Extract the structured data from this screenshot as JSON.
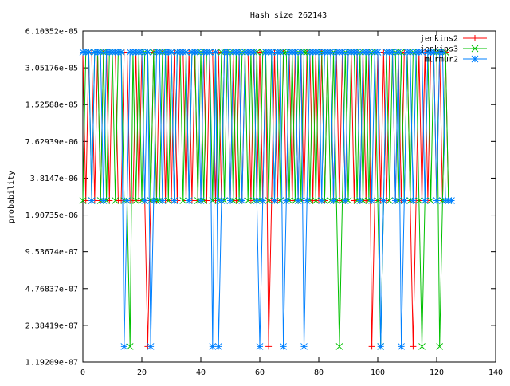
{
  "chart_data": {
    "type": "line",
    "title": "Hash size 262143",
    "xlabel": "",
    "ylabel": "probability",
    "xlim": [
      0,
      140
    ],
    "ylim": [
      1.19209e-07,
      6.10352e-05
    ],
    "yscale": "log",
    "grid": false,
    "legend_position": "top-right",
    "x_ticks": [
      "0",
      "20",
      "40",
      "60",
      "80",
      "100",
      "120",
      "140"
    ],
    "x_tick_values": [
      0,
      20,
      40,
      60,
      80,
      100,
      120,
      140
    ],
    "y_ticks": [
      "6.10352e-05",
      "3.05176e-05",
      "1.52588e-05",
      "7.62939e-06",
      "3.8147e-06",
      "1.90735e-06",
      "9.53674e-07",
      "4.76837e-07",
      "2.38419e-07",
      "1.19209e-07"
    ],
    "y_tick_values": [
      6.10352e-05,
      3.05176e-05,
      1.52588e-05,
      7.62939e-06,
      3.8147e-06,
      1.90735e-06,
      9.53674e-07,
      4.76837e-07,
      2.38419e-07,
      1.19209e-07
    ],
    "series": [
      {
        "name": "jenkins2",
        "color": "#ff0000",
        "marker": "plus",
        "high_value": 4.1e-05,
        "mid_value": 2.5e-06,
        "low_value": 1.6e-07,
        "x": [
          0,
          1,
          2,
          3,
          4,
          5,
          6,
          7,
          8,
          9,
          10,
          11,
          12,
          13,
          14,
          15,
          16,
          17,
          18,
          19,
          20,
          21,
          22,
          23,
          24,
          25,
          26,
          27,
          28,
          29,
          30,
          31,
          32,
          33,
          34,
          35,
          36,
          37,
          38,
          39,
          40,
          41,
          42,
          43,
          44,
          45,
          46,
          47,
          48,
          49,
          50,
          51,
          52,
          53,
          54,
          55,
          56,
          57,
          58,
          59,
          60,
          61,
          62,
          63,
          64,
          65,
          66,
          67,
          68,
          69,
          70,
          71,
          72,
          73,
          74,
          75,
          76,
          77,
          78,
          79,
          80,
          81,
          82,
          83,
          84,
          85,
          86,
          87,
          88,
          89,
          90,
          91,
          92,
          93,
          94,
          95,
          96,
          97,
          98,
          99,
          100,
          101,
          102,
          103,
          104,
          105,
          106,
          107,
          108,
          109,
          110,
          111,
          112,
          113,
          114,
          115,
          116,
          117,
          118,
          119,
          120,
          121,
          122,
          123,
          124
        ],
        "y": [
          4.1e-05,
          2.5e-06,
          4.1e-05,
          4.1e-05,
          2.5e-06,
          4.1e-05,
          2.5e-06,
          4.1e-05,
          4.1e-05,
          2.5e-06,
          4.1e-05,
          4.1e-05,
          2.5e-06,
          2.5e-06,
          4.1e-05,
          4.1e-05,
          2.5e-06,
          2.5e-06,
          4.1e-05,
          2.5e-06,
          4.1e-05,
          2.5e-06,
          1.6e-07,
          2.5e-06,
          4.1e-05,
          2.5e-06,
          4.1e-05,
          4.1e-05,
          2.5e-06,
          4.1e-05,
          2.5e-06,
          4.1e-05,
          2.5e-06,
          4.1e-05,
          4.1e-05,
          2.5e-06,
          4.1e-05,
          2.5e-06,
          4.1e-05,
          2.5e-06,
          2.5e-06,
          4.1e-05,
          2.5e-06,
          4.1e-05,
          4.1e-05,
          2.5e-06,
          4.1e-05,
          2.5e-06,
          4.1e-05,
          4.1e-05,
          2.5e-06,
          4.1e-05,
          2.5e-06,
          4.1e-05,
          2.5e-06,
          4.1e-05,
          4.1e-05,
          2.5e-06,
          4.1e-05,
          2.5e-06,
          4.1e-05,
          2.5e-06,
          4.1e-05,
          1.6e-07,
          2.5e-06,
          4.1e-05,
          2.5e-06,
          4.1e-05,
          4.1e-05,
          2.5e-06,
          4.1e-05,
          2.5e-06,
          4.1e-05,
          2.5e-06,
          4.1e-05,
          2.5e-06,
          4.1e-05,
          4.1e-05,
          2.5e-06,
          4.1e-05,
          2.5e-06,
          4.1e-05,
          2.5e-06,
          4.1e-05,
          4.1e-05,
          2.5e-06,
          4.1e-05,
          2.5e-06,
          4.1e-05,
          2.5e-06,
          4.1e-05,
          4.1e-05,
          2.5e-06,
          4.1e-05,
          2.5e-06,
          4.1e-05,
          2.5e-06,
          4.1e-05,
          1.6e-07,
          2.5e-06,
          4.1e-05,
          2.5e-06,
          4.1e-05,
          2.5e-06,
          4.1e-05,
          4.1e-05,
          2.5e-06,
          4.1e-05,
          2.5e-06,
          4.1e-05,
          4.1e-05,
          2.5e-06,
          1.6e-07,
          2.5e-06,
          4.1e-05,
          2.5e-06,
          4.1e-05,
          2.5e-06,
          4.1e-05,
          4.1e-05,
          2.5e-06,
          4.1e-05,
          2.5e-06,
          4.1e-05,
          2.5e-06
        ]
      },
      {
        "name": "jenkins3",
        "color": "#00c000",
        "marker": "cross",
        "high_value": 4.1e-05,
        "mid_value": 2.5e-06,
        "low_value": 1.6e-07,
        "x": [
          0,
          1,
          2,
          3,
          4,
          5,
          6,
          7,
          8,
          9,
          10,
          11,
          12,
          13,
          14,
          15,
          16,
          17,
          18,
          19,
          20,
          21,
          22,
          23,
          24,
          25,
          26,
          27,
          28,
          29,
          30,
          31,
          32,
          33,
          34,
          35,
          36,
          37,
          38,
          39,
          40,
          41,
          42,
          43,
          44,
          45,
          46,
          47,
          48,
          49,
          50,
          51,
          52,
          53,
          54,
          55,
          56,
          57,
          58,
          59,
          60,
          61,
          62,
          63,
          64,
          65,
          66,
          67,
          68,
          69,
          70,
          71,
          72,
          73,
          74,
          75,
          76,
          77,
          78,
          79,
          80,
          81,
          82,
          83,
          84,
          85,
          86,
          87,
          88,
          89,
          90,
          91,
          92,
          93,
          94,
          95,
          96,
          97,
          98,
          99,
          100,
          101,
          102,
          103,
          104,
          105,
          106,
          107,
          108,
          109,
          110,
          111,
          112,
          113,
          114,
          115,
          116,
          117,
          118,
          119,
          120,
          121,
          122,
          123,
          124
        ],
        "y": [
          2.5e-06,
          4.1e-05,
          4.1e-05,
          2.5e-06,
          4.1e-05,
          4.1e-05,
          2.5e-06,
          4.1e-05,
          2.5e-06,
          4.1e-05,
          4.1e-05,
          2.5e-06,
          4.1e-05,
          4.1e-05,
          2.5e-06,
          2.5e-06,
          1.6e-07,
          4.1e-05,
          2.5e-06,
          4.1e-05,
          2.5e-06,
          4.1e-05,
          4.1e-05,
          2.5e-06,
          4.1e-05,
          2.5e-06,
          2.5e-06,
          4.1e-05,
          4.1e-05,
          2.5e-06,
          4.1e-05,
          2.5e-06,
          4.1e-05,
          4.1e-05,
          2.5e-06,
          4.1e-05,
          2.5e-06,
          4.1e-05,
          4.1e-05,
          2.5e-06,
          4.1e-05,
          2.5e-06,
          4.1e-05,
          4.1e-05,
          2.5e-06,
          4.1e-05,
          2.5e-06,
          4.1e-05,
          2.5e-06,
          4.1e-05,
          4.1e-05,
          2.5e-06,
          4.1e-05,
          2.5e-06,
          4.1e-05,
          4.1e-05,
          2.5e-06,
          4.1e-05,
          2.5e-06,
          4.1e-05,
          2.5e-06,
          4.1e-05,
          4.1e-05,
          2.5e-06,
          4.1e-05,
          2.5e-06,
          4.1e-05,
          2.5e-06,
          4.1e-05,
          4.1e-05,
          2.5e-06,
          4.1e-05,
          2.5e-06,
          4.1e-05,
          2.5e-06,
          4.1e-05,
          4.1e-05,
          2.5e-06,
          4.1e-05,
          2.5e-06,
          4.1e-05,
          4.1e-05,
          2.5e-06,
          4.1e-05,
          2.5e-06,
          4.1e-05,
          2.5e-06,
          1.6e-07,
          2.5e-06,
          4.1e-05,
          2.5e-06,
          4.1e-05,
          4.1e-05,
          2.5e-06,
          4.1e-05,
          2.5e-06,
          4.1e-05,
          2.5e-06,
          4.1e-05,
          4.1e-05,
          2.5e-06,
          1.6e-07,
          2.5e-06,
          4.1e-05,
          2.5e-06,
          4.1e-05,
          4.1e-05,
          2.5e-06,
          4.1e-05,
          2.5e-06,
          4.1e-05,
          2.5e-06,
          4.1e-05,
          4.1e-05,
          2.5e-06,
          1.6e-07,
          2.5e-06,
          4.1e-05,
          2.5e-06,
          4.1e-05,
          4.1e-05,
          1.6e-07,
          2.5e-06,
          4.1e-05,
          2.5e-06
        ]
      },
      {
        "name": "murmur2",
        "color": "#0080ff",
        "marker": "star",
        "high_value": 4.1e-05,
        "mid_value": 2.5e-06,
        "low_value": 1.6e-07,
        "x": [
          0,
          1,
          2,
          3,
          4,
          5,
          6,
          7,
          8,
          9,
          10,
          11,
          12,
          13,
          14,
          15,
          16,
          17,
          18,
          19,
          20,
          21,
          22,
          23,
          24,
          25,
          26,
          27,
          28,
          29,
          30,
          31,
          32,
          33,
          34,
          35,
          36,
          37,
          38,
          39,
          40,
          41,
          42,
          43,
          44,
          45,
          46,
          47,
          48,
          49,
          50,
          51,
          52,
          53,
          54,
          55,
          56,
          57,
          58,
          59,
          60,
          61,
          62,
          63,
          64,
          65,
          66,
          67,
          68,
          69,
          70,
          71,
          72,
          73,
          74,
          75,
          76,
          77,
          78,
          79,
          80,
          81,
          82,
          83,
          84,
          85,
          86,
          87,
          88,
          89,
          90,
          91,
          92,
          93,
          94,
          95,
          96,
          97,
          98,
          99,
          100,
          101,
          102,
          103,
          104,
          105,
          106,
          107,
          108,
          109,
          110,
          111,
          112,
          113,
          114,
          115,
          116,
          117,
          118,
          119,
          120,
          121,
          122,
          123,
          124,
          125
        ],
        "y": [
          4.1e-05,
          4.1e-05,
          4.1e-05,
          2.5e-06,
          4.1e-05,
          4.1e-05,
          4.1e-05,
          2.5e-06,
          4.1e-05,
          4.1e-05,
          4.1e-05,
          4.1e-05,
          4.1e-05,
          4.1e-05,
          1.6e-07,
          2.5e-06,
          4.1e-05,
          4.1e-05,
          4.1e-05,
          4.1e-05,
          4.1e-05,
          2.5e-06,
          4.1e-05,
          1.6e-07,
          2.5e-06,
          4.1e-05,
          4.1e-05,
          2.5e-06,
          4.1e-05,
          4.1e-05,
          4.1e-05,
          2.5e-06,
          4.1e-05,
          4.1e-05,
          4.1e-05,
          4.1e-05,
          2.5e-06,
          4.1e-05,
          4.1e-05,
          4.1e-05,
          2.5e-06,
          4.1e-05,
          4.1e-05,
          4.1e-05,
          1.6e-07,
          4.1e-05,
          1.6e-07,
          2.5e-06,
          4.1e-05,
          4.1e-05,
          2.5e-06,
          4.1e-05,
          4.1e-05,
          4.1e-05,
          2.5e-06,
          4.1e-05,
          4.1e-05,
          4.1e-05,
          4.1e-05,
          2.5e-06,
          1.6e-07,
          2.5e-06,
          4.1e-05,
          4.1e-05,
          4.1e-05,
          2.5e-06,
          4.1e-05,
          4.1e-05,
          1.6e-07,
          2.5e-06,
          4.1e-05,
          4.1e-05,
          4.1e-05,
          2.5e-06,
          4.1e-05,
          1.6e-07,
          2.5e-06,
          4.1e-05,
          4.1e-05,
          4.1e-05,
          4.1e-05,
          2.5e-06,
          4.1e-05,
          4.1e-05,
          4.1e-05,
          2.5e-06,
          4.1e-05,
          4.1e-05,
          4.1e-05,
          2.5e-06,
          4.1e-05,
          4.1e-05,
          4.1e-05,
          4.1e-05,
          2.5e-06,
          4.1e-05,
          4.1e-05,
          4.1e-05,
          2.5e-06,
          4.1e-05,
          4.1e-05,
          1.6e-07,
          2.5e-06,
          4.1e-05,
          4.1e-05,
          4.1e-05,
          2.5e-06,
          4.1e-05,
          1.6e-07,
          2.5e-06,
          4.1e-05,
          4.1e-05,
          2.5e-06,
          4.1e-05,
          4.1e-05,
          4.1e-05,
          2.5e-06,
          4.1e-05,
          4.1e-05,
          4.1e-05,
          2.5e-06,
          4.1e-05,
          4.1e-05,
          2.5e-06,
          2.5e-06,
          2.5e-06
        ]
      }
    ]
  }
}
